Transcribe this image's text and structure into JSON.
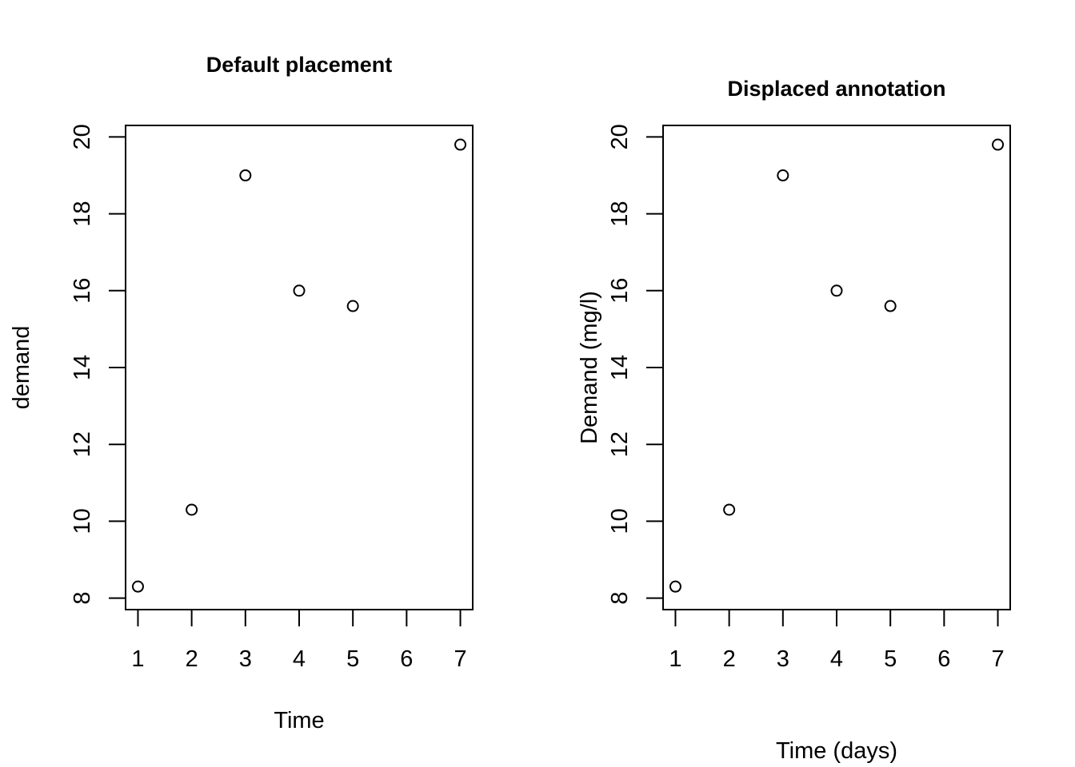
{
  "chart_data": [
    {
      "type": "scatter",
      "title": "Default placement",
      "xlabel": "Time",
      "ylabel": "demand",
      "x": [
        1,
        2,
        3,
        4,
        5,
        7
      ],
      "y": [
        8.3,
        10.3,
        19.0,
        16.0,
        15.6,
        19.8
      ],
      "xlim": [
        0.77,
        7.23
      ],
      "ylim": [
        7.7,
        20.3
      ],
      "xticks": [
        1,
        2,
        3,
        4,
        5,
        6,
        7
      ],
      "yticks": [
        8,
        10,
        12,
        14,
        16,
        18,
        20
      ],
      "grid": false,
      "marker": "open-circle"
    },
    {
      "type": "scatter",
      "title": "Displaced annotation",
      "xlabel": "Time (days)",
      "ylabel": "Demand (mg/l)",
      "x": [
        1,
        2,
        3,
        4,
        5,
        7
      ],
      "y": [
        8.3,
        10.3,
        19.0,
        16.0,
        15.6,
        19.8
      ],
      "xlim": [
        0.77,
        7.23
      ],
      "ylim": [
        7.7,
        20.3
      ],
      "xticks": [
        1,
        2,
        3,
        4,
        5,
        6,
        7
      ],
      "yticks": [
        8,
        10,
        12,
        14,
        16,
        18,
        20
      ],
      "grid": false,
      "marker": "open-circle"
    }
  ]
}
